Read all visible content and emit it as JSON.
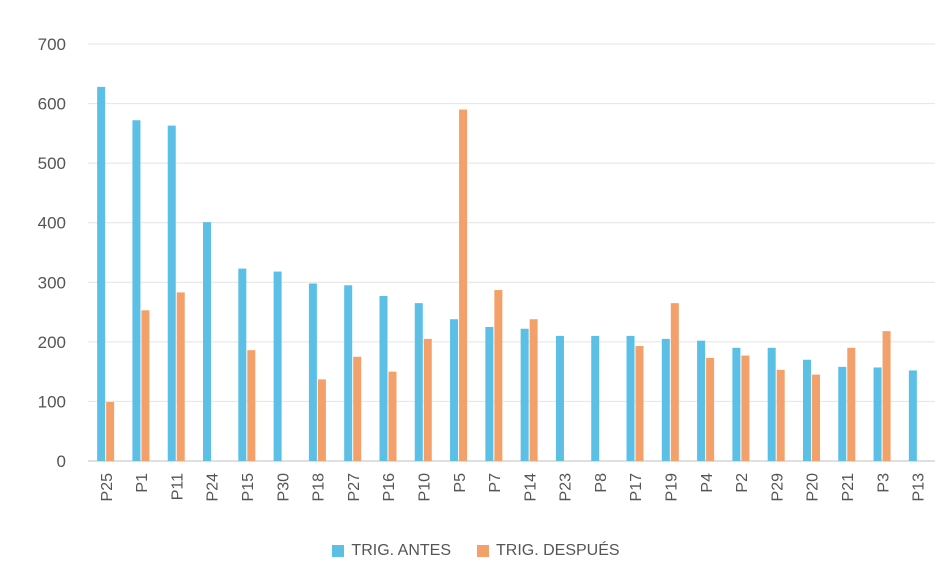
{
  "chart_data": {
    "type": "bar",
    "categories": [
      "P25",
      "P1",
      "P11",
      "P24",
      "P15",
      "P30",
      "P18",
      "P27",
      "P16",
      "P10",
      "P5",
      "P7",
      "P14",
      "P23",
      "P8",
      "P17",
      "P19",
      "P4",
      "P2",
      "P29",
      "P20",
      "P21",
      "P3",
      "P13"
    ],
    "series": [
      {
        "name": "TRIG. ANTES",
        "color": "#5bbfe6",
        "values": [
          628,
          572,
          563,
          401,
          323,
          318,
          298,
          295,
          277,
          265,
          238,
          225,
          222,
          210,
          210,
          210,
          205,
          202,
          190,
          190,
          170,
          158,
          157,
          152
        ]
      },
      {
        "name": "TRIG. DESPUÉS",
        "color": "#f4a06a",
        "values": [
          99,
          253,
          283,
          null,
          186,
          null,
          137,
          175,
          150,
          205,
          590,
          287,
          238,
          null,
          null,
          193,
          265,
          173,
          177,
          153,
          145,
          190,
          218,
          null
        ]
      }
    ],
    "yticks": [
      0,
      100,
      200,
      300,
      400,
      500,
      600,
      700
    ],
    "ylim": [
      0,
      700
    ],
    "grid": true,
    "legend_position": "bottom",
    "title": "",
    "xlabel": "",
    "ylabel": ""
  }
}
